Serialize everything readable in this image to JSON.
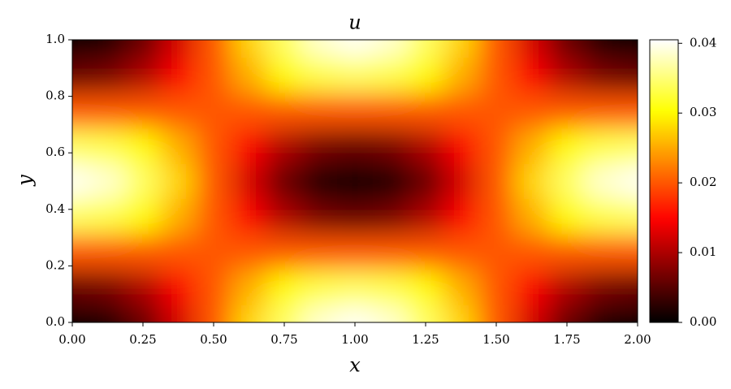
{
  "chart_data": {
    "type": "heatmap",
    "title": "u",
    "x_label": "x",
    "y_label": "y",
    "colormap": "hot",
    "x": [
      0,
      0.125,
      0.25,
      0.375,
      0.5,
      0.625,
      0.75,
      0.875,
      1,
      1.125,
      1.25,
      1.375,
      1.5,
      1.625,
      1.75,
      1.875,
      2
    ],
    "y": [
      0,
      0.125,
      0.25,
      0.375,
      0.5,
      0.625,
      0.75,
      0.875,
      1
    ],
    "z": [
      [
        0,
        0.0015,
        0.0059,
        0.0123,
        0.02,
        0.0277,
        0.0341,
        0.0385,
        0.04,
        0.0385,
        0.0341,
        0.0277,
        0.02,
        0.0123,
        0.0059,
        0.0015,
        0
      ],
      [
        0.0059,
        0.0069,
        0.01,
        0.0146,
        0.02,
        0.0254,
        0.03,
        0.0331,
        0.0341,
        0.0331,
        0.03,
        0.0254,
        0.02,
        0.0146,
        0.01,
        0.0069,
        0.0059
      ],
      [
        0.02,
        0.02,
        0.02,
        0.02,
        0.02,
        0.02,
        0.02,
        0.02,
        0.02,
        0.02,
        0.02,
        0.02,
        0.02,
        0.02,
        0.02,
        0.02,
        0.02
      ],
      [
        0.0341,
        0.0331,
        0.03,
        0.0254,
        0.02,
        0.0146,
        0.01,
        0.0069,
        0.0059,
        0.0069,
        0.01,
        0.0146,
        0.02,
        0.0254,
        0.03,
        0.0331,
        0.0341
      ],
      [
        0.04,
        0.0385,
        0.0341,
        0.0277,
        0.02,
        0.0123,
        0.0059,
        0.0015,
        0,
        0.0015,
        0.0059,
        0.0123,
        0.02,
        0.0277,
        0.0341,
        0.0385,
        0.04
      ],
      [
        0.0341,
        0.0331,
        0.03,
        0.0254,
        0.02,
        0.0146,
        0.01,
        0.0069,
        0.0059,
        0.0069,
        0.01,
        0.0146,
        0.02,
        0.0254,
        0.03,
        0.0331,
        0.0341
      ],
      [
        0.02,
        0.02,
        0.02,
        0.02,
        0.02,
        0.02,
        0.02,
        0.02,
        0.02,
        0.02,
        0.02,
        0.02,
        0.02,
        0.02,
        0.02,
        0.02,
        0.02
      ],
      [
        0.0059,
        0.0069,
        0.01,
        0.0146,
        0.02,
        0.0254,
        0.03,
        0.0331,
        0.0341,
        0.0331,
        0.03,
        0.0254,
        0.02,
        0.0146,
        0.01,
        0.0069,
        0.0059
      ],
      [
        0,
        0.0015,
        0.0059,
        0.0123,
        0.02,
        0.0277,
        0.0341,
        0.0385,
        0.04,
        0.0385,
        0.0341,
        0.0277,
        0.02,
        0.0123,
        0.0059,
        0.0015,
        0
      ]
    ],
    "xlim": [
      0,
      2
    ],
    "ylim": [
      0,
      1
    ],
    "clim": [
      0,
      0.0405
    ],
    "xticks": [
      {
        "value": 0,
        "label": "0.00"
      },
      {
        "value": 0.25,
        "label": "0.25"
      },
      {
        "value": 0.5,
        "label": "0.50"
      },
      {
        "value": 0.75,
        "label": "0.75"
      },
      {
        "value": 1,
        "label": "1.00"
      },
      {
        "value": 1.25,
        "label": "1.25"
      },
      {
        "value": 1.5,
        "label": "1.50"
      },
      {
        "value": 1.75,
        "label": "1.75"
      },
      {
        "value": 2,
        "label": "2.00"
      }
    ],
    "yticks": [
      {
        "value": 0,
        "label": "0.0"
      },
      {
        "value": 0.2,
        "label": "0.2"
      },
      {
        "value": 0.4,
        "label": "0.4"
      },
      {
        "value": 0.6,
        "label": "0.6"
      },
      {
        "value": 0.8,
        "label": "0.8"
      },
      {
        "value": 1,
        "label": "1.0"
      }
    ],
    "cticks": [
      {
        "value": 0,
        "label": "0.00"
      },
      {
        "value": 0.01,
        "label": "0.01"
      },
      {
        "value": 0.02,
        "label": "0.02"
      },
      {
        "value": 0.03,
        "label": "0.03"
      },
      {
        "value": 0.04,
        "label": "0.04"
      }
    ]
  }
}
